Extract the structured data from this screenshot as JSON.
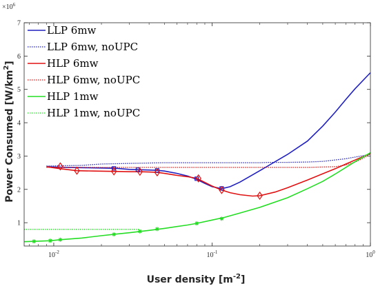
{
  "chart_data": {
    "type": "line",
    "title": "",
    "xlabel": "User density [m",
    "xlabel_sup": "-2",
    "xlabel_end": "]",
    "ylabel": "Power Consumed [W/km",
    "ylabel_sup": "2",
    "ylabel_end": "]",
    "y_exponent_base": "×10",
    "y_exponent_power": "6",
    "xscale": "log",
    "xlim": [
      0.0065,
      1.0
    ],
    "ylim": [
      300000,
      7000000
    ],
    "grid": false,
    "legend_position": "top-left",
    "x_ticks": [
      {
        "value": 0.01,
        "base": "10",
        "exp": "-2"
      },
      {
        "value": 0.1,
        "base": "10",
        "exp": "-1"
      },
      {
        "value": 1,
        "base": "10",
        "exp": "0"
      }
    ],
    "y_ticks": [
      {
        "value": 1000000,
        "label": "1"
      },
      {
        "value": 2000000,
        "label": "2"
      },
      {
        "value": 3000000,
        "label": "3"
      },
      {
        "value": 4000000,
        "label": "4"
      },
      {
        "value": 5000000,
        "label": "5"
      },
      {
        "value": 6000000,
        "label": "6"
      },
      {
        "value": 7000000,
        "label": "7"
      }
    ],
    "series": [
      {
        "name": "LLP 6mw",
        "color": "#1f1fbf",
        "style": "solid",
        "marker": "square",
        "x": [
          0.009,
          0.012,
          0.016,
          0.02,
          0.025,
          0.03,
          0.035,
          0.04,
          0.045,
          0.05,
          0.06,
          0.07,
          0.08,
          0.09,
          0.1,
          0.115,
          0.13,
          0.15,
          0.2,
          0.3,
          0.4,
          0.5,
          0.6,
          0.7,
          0.8,
          1.0
        ],
        "y": [
          2680000,
          2660000,
          2650000,
          2640000,
          2630000,
          2600000,
          2590000,
          2580000,
          2570000,
          2550000,
          2480000,
          2400000,
          2300000,
          2180000,
          2080000,
          2020000,
          2080000,
          2220000,
          2560000,
          3050000,
          3450000,
          3900000,
          4320000,
          4700000,
          5020000,
          5500000
        ],
        "marker_x": [
          0.024,
          0.034,
          0.045,
          0.08,
          0.115
        ],
        "marker_y": [
          2630000,
          2590000,
          2570000,
          2320000,
          2030000
        ]
      },
      {
        "name": "LLP 6mw, noUPC",
        "color": "#1f1fbf",
        "style": "dotted",
        "x": [
          0.009,
          0.015,
          0.02,
          0.03,
          0.05,
          0.08,
          0.1,
          0.15,
          0.2,
          0.23,
          0.3,
          0.4,
          0.5,
          0.7,
          1.0
        ],
        "y": [
          2700000,
          2720000,
          2760000,
          2780000,
          2800000,
          2800000,
          2800000,
          2800000,
          2800000,
          2810000,
          2810000,
          2820000,
          2840000,
          2920000,
          3050000
        ]
      },
      {
        "name": "HLP 6mw",
        "color": "#e01010",
        "style": "solid",
        "marker": "diamond",
        "x": [
          0.009,
          0.011,
          0.014,
          0.018,
          0.024,
          0.03,
          0.035,
          0.04,
          0.045,
          0.05,
          0.06,
          0.07,
          0.08,
          0.1,
          0.115,
          0.13,
          0.15,
          0.18,
          0.2,
          0.25,
          0.3,
          0.4,
          0.5,
          0.6,
          0.7,
          0.8,
          1.0
        ],
        "y": [
          2680000,
          2620000,
          2560000,
          2550000,
          2540000,
          2530000,
          2530000,
          2520000,
          2510000,
          2480000,
          2420000,
          2380000,
          2330000,
          2100000,
          1980000,
          1900000,
          1840000,
          1800000,
          1810000,
          1920000,
          2050000,
          2280000,
          2470000,
          2620000,
          2760000,
          2880000,
          3080000
        ],
        "marker_x": [
          0.011,
          0.014,
          0.024,
          0.035,
          0.045,
          0.082,
          0.115,
          0.2
        ],
        "marker_y": [
          2690000,
          2560000,
          2540000,
          2530000,
          2510000,
          2330000,
          1980000,
          1810000
        ]
      },
      {
        "name": "HLP 6mw, noUPC",
        "color": "#e01010",
        "style": "dotted",
        "x": [
          0.009,
          0.015,
          0.02,
          0.03,
          0.05,
          0.08,
          0.1,
          0.2,
          0.4,
          0.6,
          0.7,
          0.8,
          0.9,
          1.0
        ],
        "y": [
          2660000,
          2660000,
          2660000,
          2660000,
          2660000,
          2660000,
          2660000,
          2660000,
          2660000,
          2680000,
          2730000,
          2820000,
          2930000,
          3070000
        ]
      },
      {
        "name": "HLP 1mw",
        "color": "#22dd22",
        "style": "solid",
        "marker": "asterisk",
        "x": [
          0.0065,
          0.0075,
          0.0095,
          0.011,
          0.015,
          0.02,
          0.025,
          0.03,
          0.04,
          0.05,
          0.07,
          0.08,
          0.1,
          0.12,
          0.15,
          0.2,
          0.3,
          0.4,
          0.5,
          0.6,
          0.7,
          0.8,
          1.0
        ],
        "y": [
          430000,
          440000,
          460000,
          490000,
          540000,
          610000,
          660000,
          700000,
          770000,
          830000,
          930000,
          980000,
          1080000,
          1160000,
          1290000,
          1460000,
          1750000,
          2020000,
          2240000,
          2460000,
          2660000,
          2830000,
          3100000
        ],
        "marker_x": [
          0.0075,
          0.0095,
          0.011,
          0.024,
          0.035,
          0.045,
          0.08,
          0.115
        ],
        "marker_y": [
          440000,
          460000,
          490000,
          650000,
          740000,
          810000,
          980000,
          1120000
        ]
      },
      {
        "name": "HLP 1mw, noUPC",
        "color": "#22dd22",
        "style": "dotted",
        "x": [
          0.0065,
          0.01,
          0.015,
          0.02,
          0.03,
          0.035
        ],
        "y": [
          800000,
          800000,
          800000,
          800000,
          800000,
          800000
        ]
      }
    ]
  }
}
